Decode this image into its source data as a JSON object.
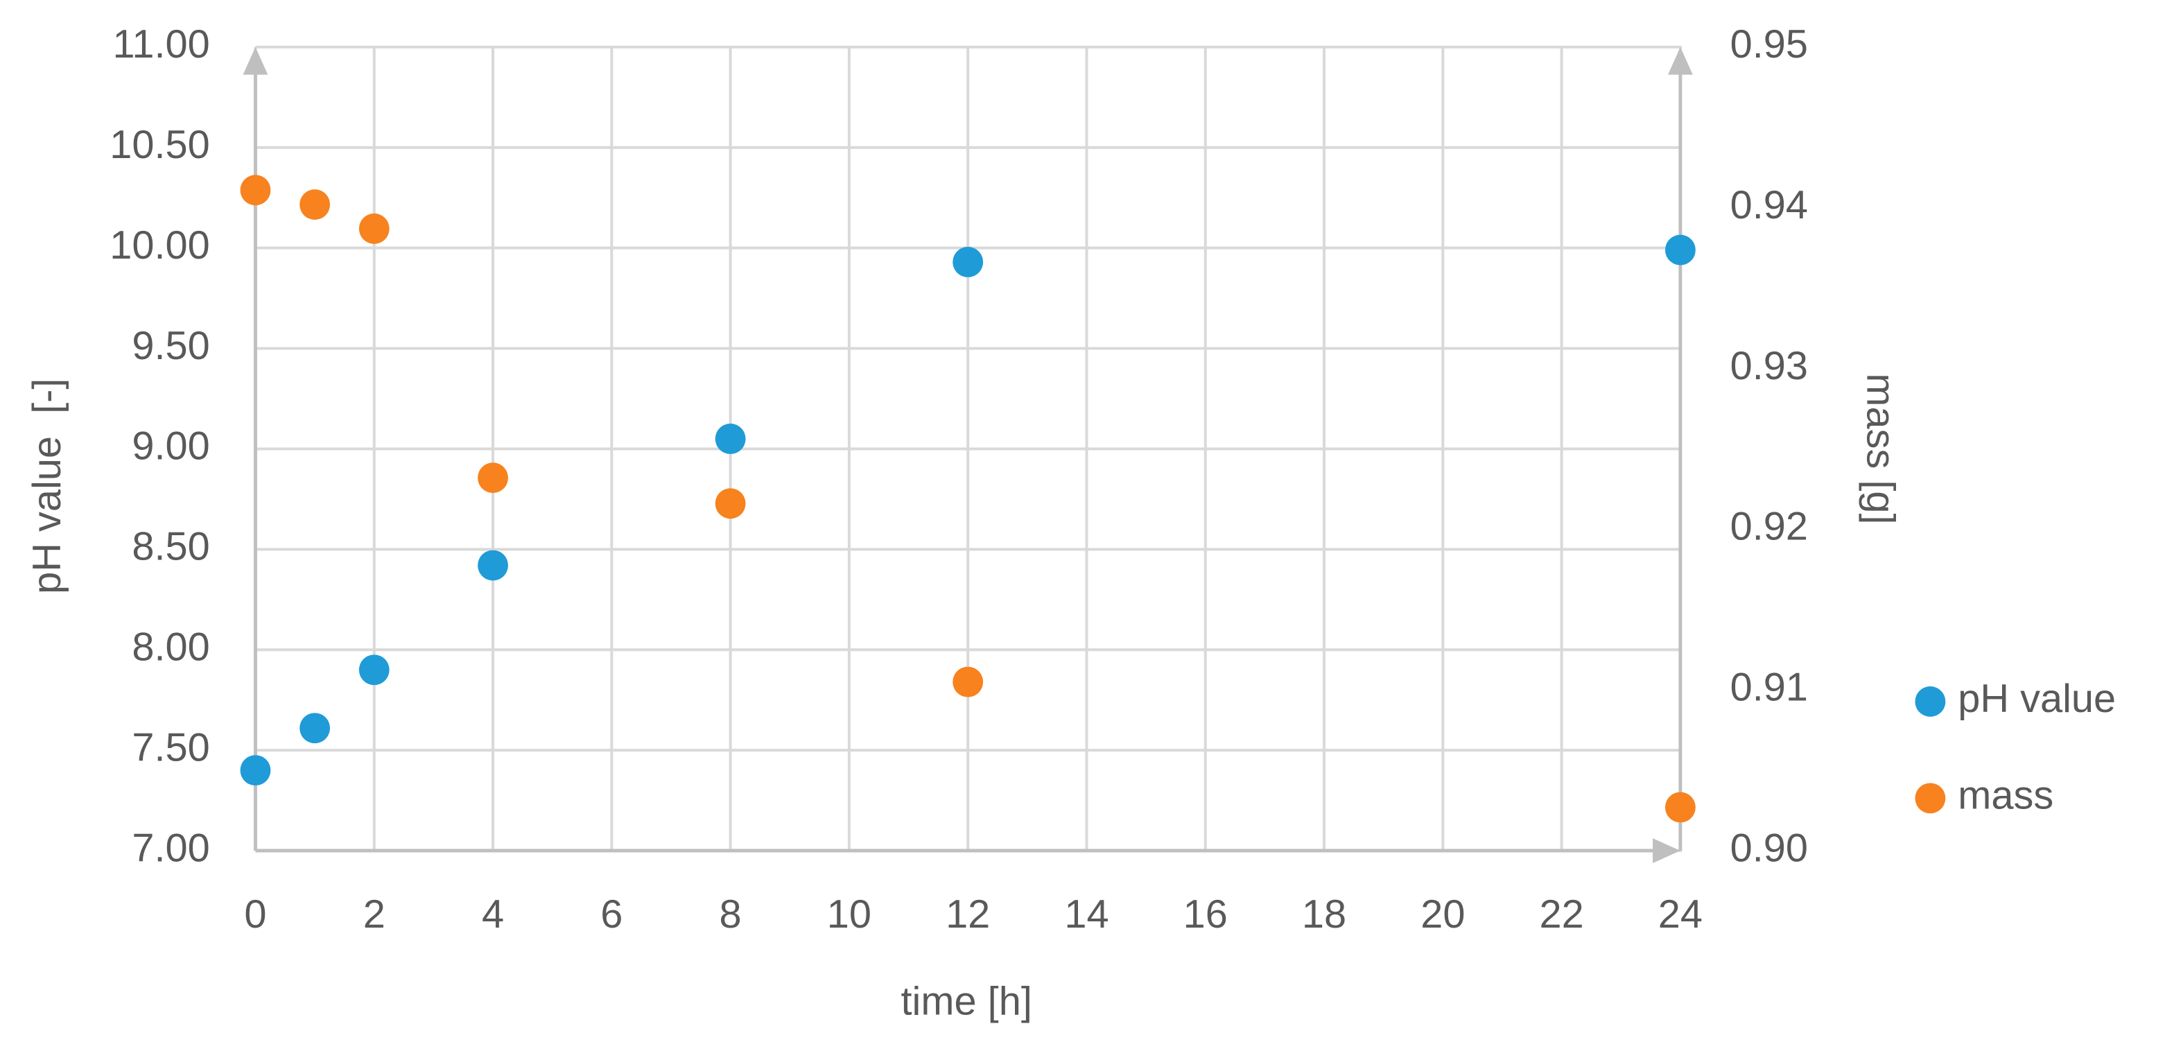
{
  "chart_data": {
    "type": "scatter",
    "x_label": "time [h]",
    "y_label": "pH value  [-]",
    "y2_label": "mass [g]",
    "x": [
      0,
      1,
      2,
      4,
      8,
      12,
      24
    ],
    "series": [
      {
        "name": "pH value",
        "color": "#1f9bd7",
        "values": [
          7.4,
          7.61,
          7.9,
          8.42,
          9.05,
          9.93,
          9.99
        ]
      },
      {
        "name": "mass",
        "color": "#f7821e",
        "axis": "y2",
        "values": [
          0.9411,
          0.9402,
          0.9387,
          0.9232,
          0.9216,
          0.9105,
          0.9027
        ]
      }
    ],
    "xlim": [
      0,
      24
    ],
    "xticks": [
      0,
      2,
      4,
      6,
      8,
      10,
      12,
      14,
      16,
      18,
      20,
      22,
      24
    ],
    "ylim": [
      7,
      11
    ],
    "yticks": [
      {
        "value": 7,
        "label": "7.00"
      },
      {
        "value": 7.5,
        "label": "7.50"
      },
      {
        "value": 8,
        "label": "8.00"
      },
      {
        "value": 8.5,
        "label": "8.50"
      },
      {
        "value": 9,
        "label": "9.00"
      },
      {
        "value": 9.5,
        "label": "9.50"
      },
      {
        "value": 10,
        "label": "10.00"
      },
      {
        "value": 10.5,
        "label": "10.50"
      },
      {
        "value": 11,
        "label": "11.00"
      }
    ],
    "y2lim": [
      0.9,
      0.95
    ],
    "y2ticks": [
      {
        "value": 0.9,
        "label": "0.90"
      },
      0.91,
      0.92,
      0.93,
      0.94,
      0.95
    ],
    "grid": true,
    "legend": "right"
  }
}
